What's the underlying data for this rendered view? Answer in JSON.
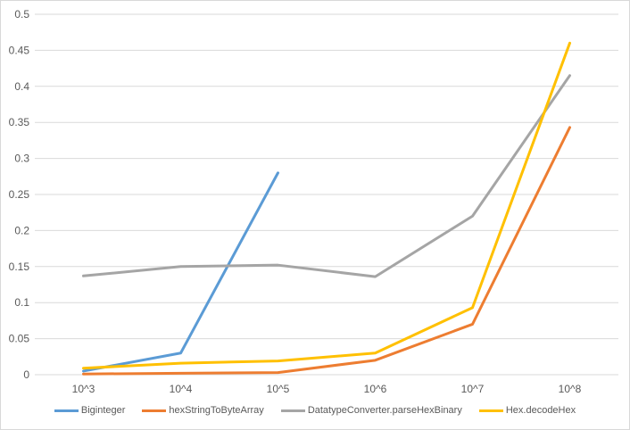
{
  "window": {
    "background": "#FFFFFF",
    "border_color": "#D9D9D9"
  },
  "chart_data": {
    "type": "line",
    "title": "",
    "xlabel": "",
    "ylabel": "",
    "categories": [
      "10^3",
      "10^4",
      "10^5",
      "10^6",
      "10^7",
      "10^8"
    ],
    "series": [
      {
        "name": "Biginteger",
        "color": "#5B9BD5",
        "values": [
          0.005,
          0.03,
          0.28,
          null,
          null,
          null
        ]
      },
      {
        "name": "hexStringToByteArray",
        "color": "#ED7D31",
        "values": [
          0.001,
          0.002,
          0.003,
          0.02,
          0.07,
          0.343
        ]
      },
      {
        "name": "DatatypeConverter.parseHexBinary",
        "color": "#A5A5A5",
        "values": [
          0.137,
          0.15,
          0.152,
          0.136,
          0.22,
          0.415
        ]
      },
      {
        "name": "Hex.decodeHex",
        "color": "#FFC000",
        "values": [
          0.009,
          0.016,
          0.019,
          0.03,
          0.093,
          0.46
        ]
      }
    ],
    "ylim": [
      0,
      0.5
    ],
    "ytick_step": 0.05,
    "ytick_labels": [
      "0",
      "0.05",
      "0.1",
      "0.15",
      "0.2",
      "0.25",
      "0.3",
      "0.35",
      "0.4",
      "0.45",
      "0.5"
    ],
    "grid": true,
    "legend_position": "bottom",
    "gridline_color": "#D9D9D9",
    "axis_text_color": "#595959"
  }
}
